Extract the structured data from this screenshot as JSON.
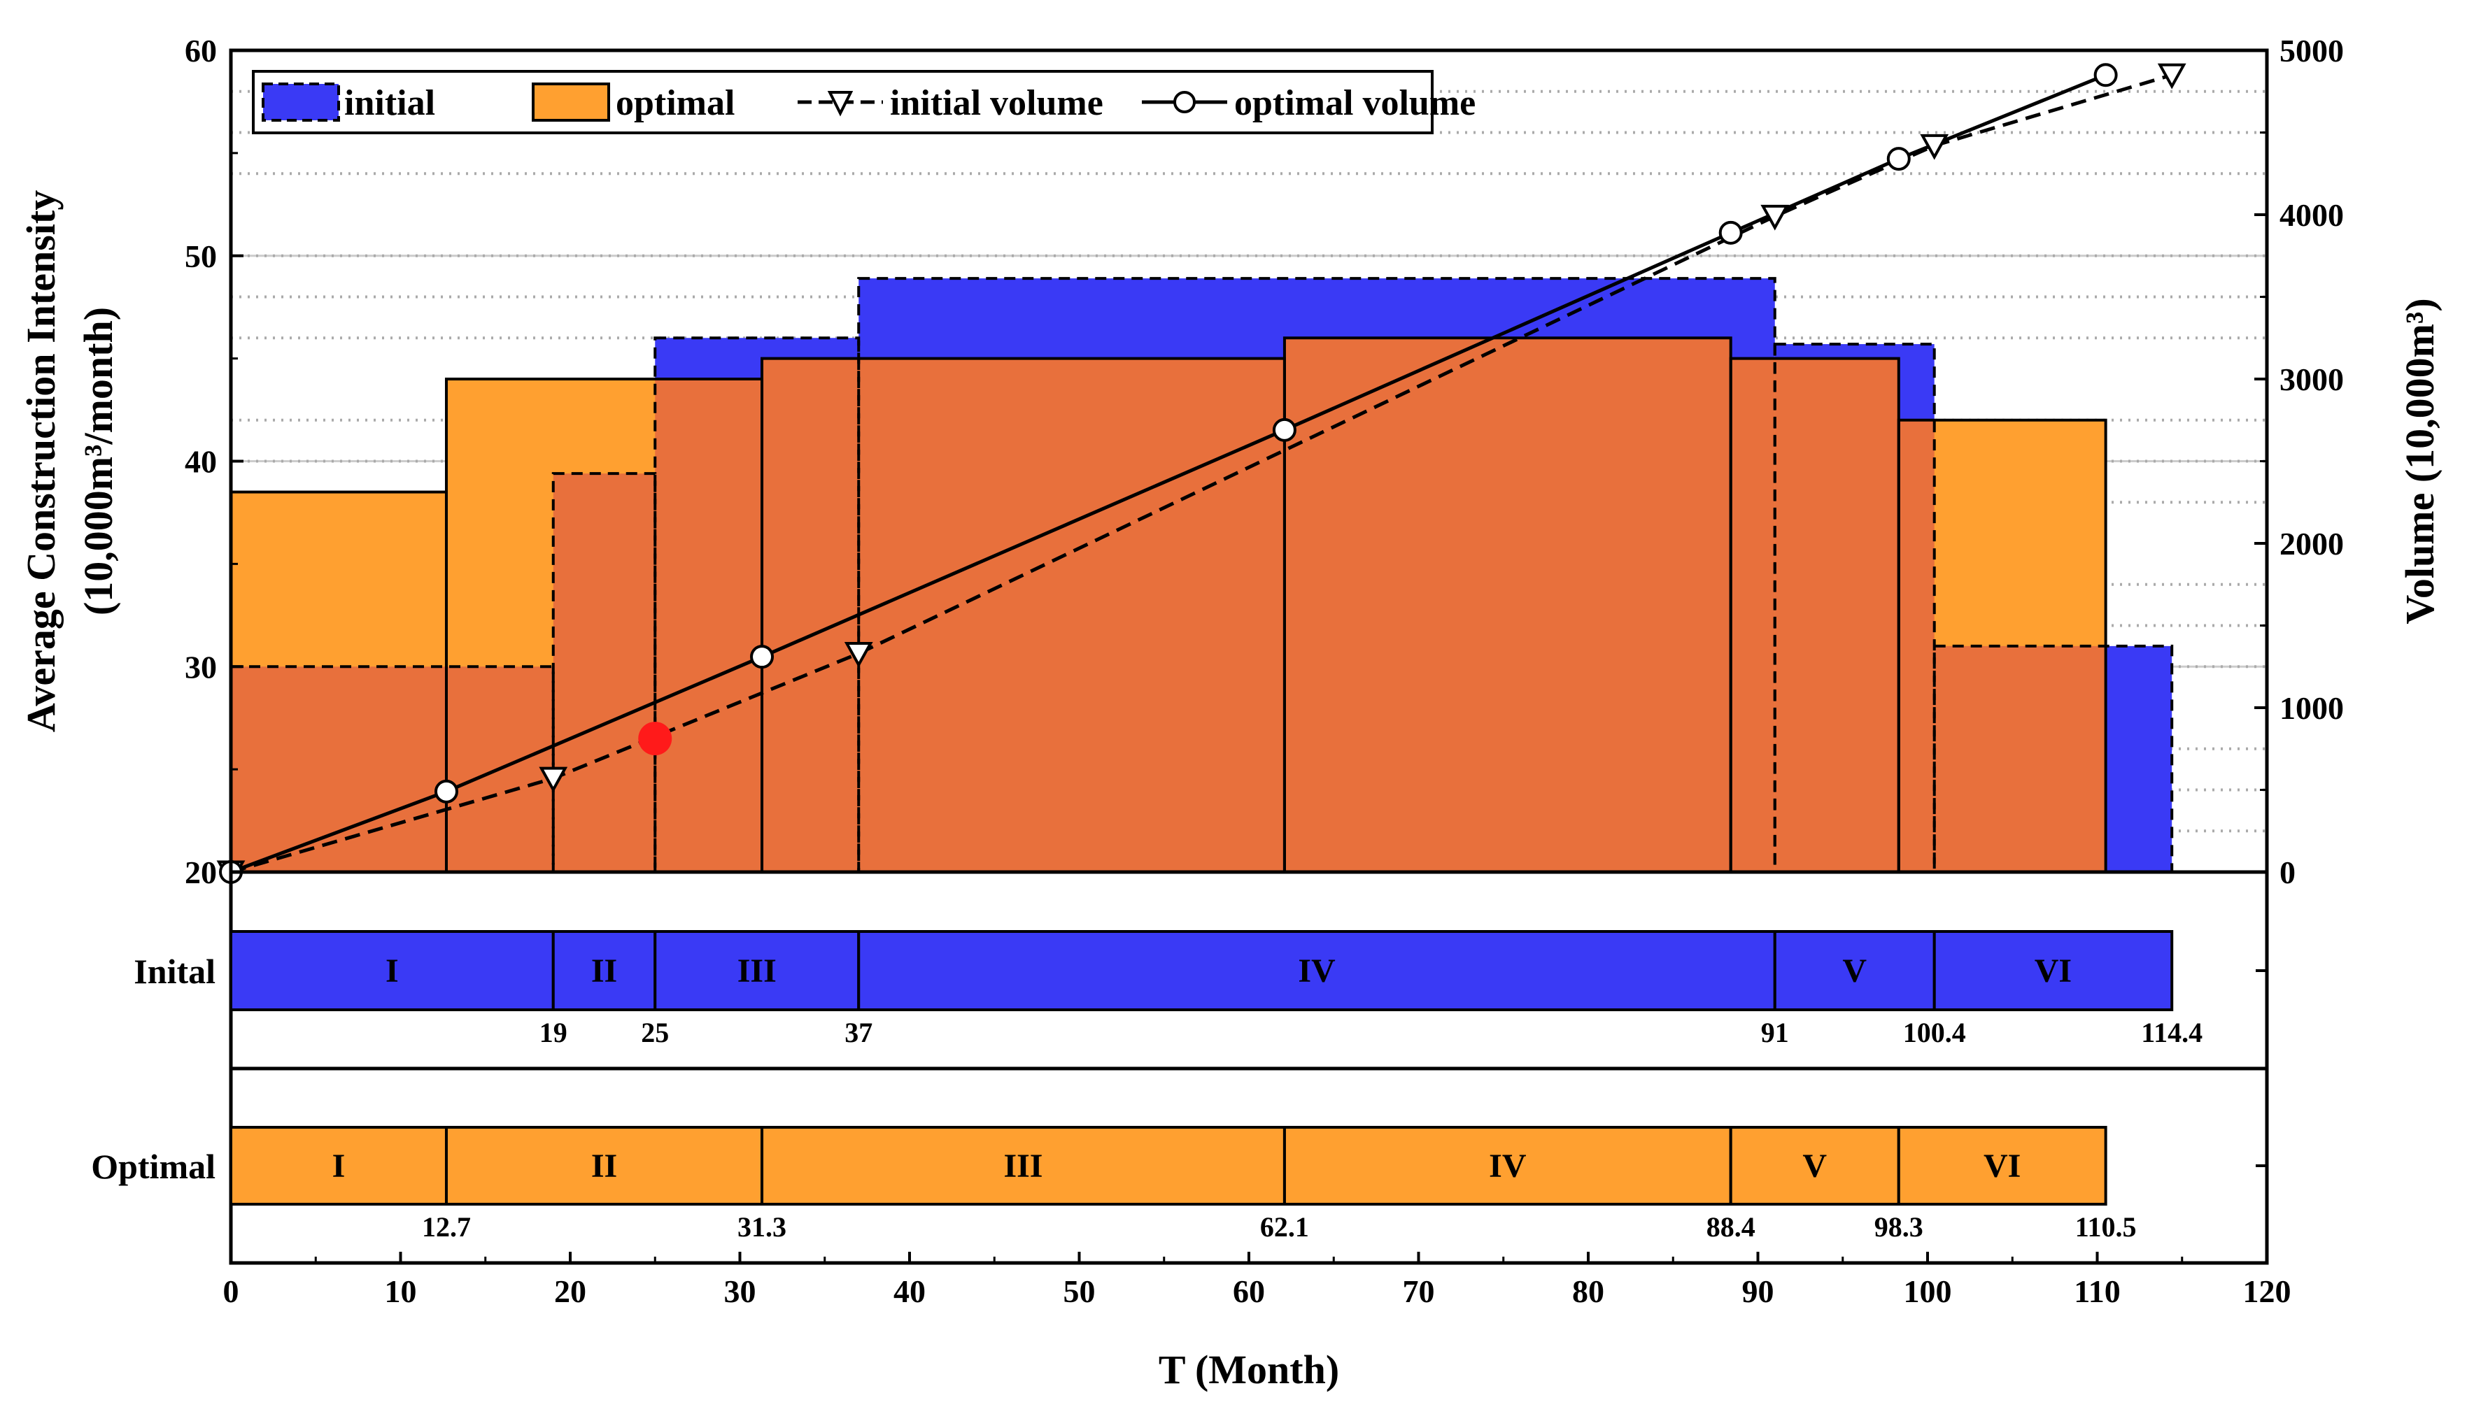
{
  "chart_data": {
    "type": "bar",
    "xlabel": "T (Month)",
    "ylabel": [
      "Average Construction Intensity",
      "(10,000m³/month)"
    ],
    "ylabel_right": "Volume (10,000m³)",
    "xlim": [
      0,
      120
    ],
    "x_ticks": [
      0,
      10,
      20,
      30,
      40,
      50,
      60,
      70,
      80,
      90,
      100,
      110,
      120
    ],
    "ylim": [
      20,
      60
    ],
    "y_ticks": [
      20,
      30,
      40,
      50,
      60
    ],
    "ylim_right": [
      0,
      5000
    ],
    "y_ticks_right": [
      0,
      1000,
      2000,
      3000,
      4000,
      5000
    ],
    "grid": true,
    "legend": {
      "position": "top-left",
      "entries": [
        "initial",
        "optimal",
        "initial volume",
        "optimal volume"
      ]
    },
    "colors": {
      "initial": "#3a3af5",
      "optimal": "#ffa030",
      "overlap": "#e8703c",
      "marker": "#ff1a1a"
    },
    "series": [
      {
        "name": "initial",
        "kind": "step",
        "steps": [
          {
            "start": 0,
            "end": 19,
            "value": 30
          },
          {
            "start": 19,
            "end": 25,
            "value": 39.4
          },
          {
            "start": 25,
            "end": 37,
            "value": 46
          },
          {
            "start": 37,
            "end": 91,
            "value": 48.9
          },
          {
            "start": 91,
            "end": 100.4,
            "value": 45.7
          },
          {
            "start": 100.4,
            "end": 114.4,
            "value": 31
          }
        ]
      },
      {
        "name": "optimal",
        "kind": "step",
        "steps": [
          {
            "start": 0,
            "end": 12.7,
            "value": 38.5
          },
          {
            "start": 12.7,
            "end": 31.3,
            "value": 44
          },
          {
            "start": 31.3,
            "end": 62.1,
            "value": 45
          },
          {
            "start": 62.1,
            "end": 88.4,
            "value": 46
          },
          {
            "start": 88.4,
            "end": 98.3,
            "value": 45
          },
          {
            "start": 98.3,
            "end": 110.5,
            "value": 42
          }
        ]
      },
      {
        "name": "initial volume",
        "kind": "line",
        "axis": "right",
        "x": [
          0,
          19,
          37,
          91,
          100.4,
          114.4
        ],
        "y": [
          0,
          570,
          1330,
          3990,
          4420,
          4850
        ]
      },
      {
        "name": "optimal volume",
        "kind": "line",
        "axis": "right",
        "x": [
          0,
          12.7,
          31.3,
          62.1,
          88.4,
          98.3,
          110.5
        ],
        "y": [
          0,
          490,
          1310,
          2690,
          3890,
          4340,
          4850
        ]
      }
    ],
    "marker_point": {
      "x": 25,
      "y": 26.5
    },
    "gantt": [
      {
        "label": "Inital",
        "phases": [
          {
            "name": "I",
            "start": 0,
            "end": 19
          },
          {
            "name": "II",
            "start": 19,
            "end": 25
          },
          {
            "name": "III",
            "start": 25,
            "end": 37
          },
          {
            "name": "IV",
            "start": 37,
            "end": 91
          },
          {
            "name": "V",
            "start": 91,
            "end": 100.4
          },
          {
            "name": "VI",
            "start": 100.4,
            "end": 114.4
          }
        ],
        "boundary_labels": [
          "19",
          "25",
          "37",
          "91",
          "100.4",
          "114.4"
        ]
      },
      {
        "label": "Optimal",
        "phases": [
          {
            "name": "I",
            "start": 0,
            "end": 12.7
          },
          {
            "name": "II",
            "start": 12.7,
            "end": 31.3
          },
          {
            "name": "III",
            "start": 31.3,
            "end": 62.1
          },
          {
            "name": "IV",
            "start": 62.1,
            "end": 88.4
          },
          {
            "name": "V",
            "start": 88.4,
            "end": 98.3
          },
          {
            "name": "VI",
            "start": 98.3,
            "end": 110.5
          }
        ],
        "boundary_labels": [
          "12.7",
          "31.3",
          "62.1",
          "88.4",
          "98.3",
          "110.5"
        ]
      }
    ]
  }
}
